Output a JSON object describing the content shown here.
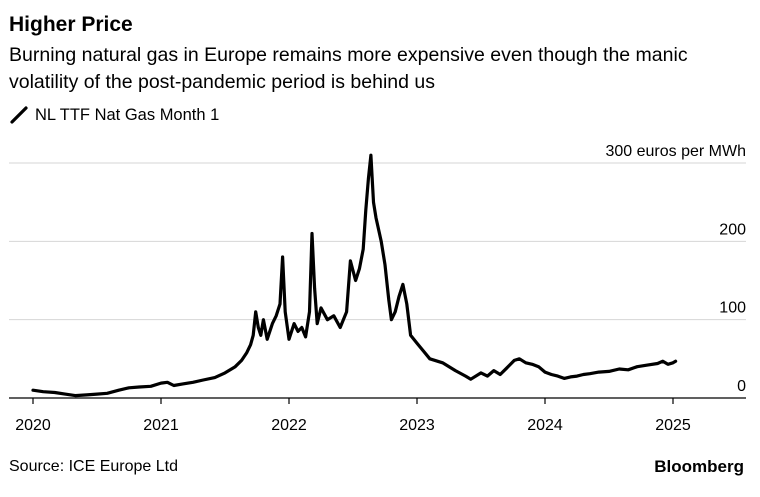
{
  "title": "Higher Price",
  "subtitle": "Burning natural gas in Europe remains more expensive even though the manic volatility of the post-pandemic period is behind us",
  "legend_label": "NL TTF Nat Gas Month 1",
  "source": "Source: ICE Europe Ltd",
  "brand": "Bloomberg",
  "colors": {
    "line": "#000000",
    "grid": "#d6d6d6",
    "axis": "#000000"
  },
  "chart_data": {
    "type": "line",
    "title": "Higher Price",
    "y_unit_label": "300 euros per MWh",
    "ylim": [
      0,
      300
    ],
    "y_ticks": [
      0,
      100,
      200,
      300
    ],
    "y_tick_labels": [
      "0",
      "100",
      "200",
      "300 euros per MWh"
    ],
    "x_ticks": [
      2020,
      2021,
      2022,
      2023,
      2024,
      2025
    ],
    "x_tick_labels": [
      "2020",
      "2021",
      "2022",
      "2023",
      "2024",
      "2025"
    ],
    "xlim": [
      2020,
      2025.55
    ],
    "grid": true,
    "legend_position": "top-left",
    "series": [
      {
        "name": "NL TTF Nat Gas Month 1",
        "points": [
          [
            2020.0,
            10
          ],
          [
            2020.08,
            8
          ],
          [
            2020.17,
            7
          ],
          [
            2020.25,
            5
          ],
          [
            2020.33,
            3
          ],
          [
            2020.42,
            4
          ],
          [
            2020.5,
            5
          ],
          [
            2020.58,
            6
          ],
          [
            2020.67,
            10
          ],
          [
            2020.75,
            13
          ],
          [
            2020.83,
            14
          ],
          [
            2020.92,
            15
          ],
          [
            2021.0,
            19
          ],
          [
            2021.05,
            20
          ],
          [
            2021.1,
            16
          ],
          [
            2021.17,
            18
          ],
          [
            2021.25,
            20
          ],
          [
            2021.33,
            23
          ],
          [
            2021.42,
            26
          ],
          [
            2021.5,
            32
          ],
          [
            2021.58,
            40
          ],
          [
            2021.63,
            48
          ],
          [
            2021.67,
            58
          ],
          [
            2021.7,
            68
          ],
          [
            2021.72,
            80
          ],
          [
            2021.74,
            110
          ],
          [
            2021.76,
            90
          ],
          [
            2021.78,
            80
          ],
          [
            2021.8,
            100
          ],
          [
            2021.83,
            75
          ],
          [
            2021.87,
            95
          ],
          [
            2021.9,
            105
          ],
          [
            2021.93,
            120
          ],
          [
            2021.95,
            180
          ],
          [
            2021.97,
            110
          ],
          [
            2022.0,
            75
          ],
          [
            2022.04,
            95
          ],
          [
            2022.07,
            85
          ],
          [
            2022.1,
            90
          ],
          [
            2022.13,
            78
          ],
          [
            2022.16,
            110
          ],
          [
            2022.18,
            210
          ],
          [
            2022.2,
            140
          ],
          [
            2022.22,
            95
          ],
          [
            2022.25,
            115
          ],
          [
            2022.3,
            100
          ],
          [
            2022.35,
            105
          ],
          [
            2022.4,
            90
          ],
          [
            2022.45,
            110
          ],
          [
            2022.48,
            175
          ],
          [
            2022.52,
            150
          ],
          [
            2022.55,
            165
          ],
          [
            2022.58,
            190
          ],
          [
            2022.6,
            240
          ],
          [
            2022.62,
            280
          ],
          [
            2022.64,
            310
          ],
          [
            2022.66,
            250
          ],
          [
            2022.68,
            230
          ],
          [
            2022.72,
            200
          ],
          [
            2022.75,
            170
          ],
          [
            2022.78,
            125
          ],
          [
            2022.8,
            100
          ],
          [
            2022.83,
            110
          ],
          [
            2022.86,
            130
          ],
          [
            2022.89,
            145
          ],
          [
            2022.92,
            120
          ],
          [
            2022.95,
            80
          ],
          [
            2023.0,
            70
          ],
          [
            2023.05,
            60
          ],
          [
            2023.1,
            50
          ],
          [
            2023.2,
            45
          ],
          [
            2023.3,
            35
          ],
          [
            2023.38,
            28
          ],
          [
            2023.42,
            24
          ],
          [
            2023.5,
            32
          ],
          [
            2023.55,
            28
          ],
          [
            2023.6,
            35
          ],
          [
            2023.65,
            30
          ],
          [
            2023.7,
            38
          ],
          [
            2023.76,
            48
          ],
          [
            2023.8,
            50
          ],
          [
            2023.85,
            45
          ],
          [
            2023.9,
            43
          ],
          [
            2023.95,
            40
          ],
          [
            2024.0,
            33
          ],
          [
            2024.05,
            30
          ],
          [
            2024.1,
            28
          ],
          [
            2024.15,
            25
          ],
          [
            2024.2,
            27
          ],
          [
            2024.25,
            28
          ],
          [
            2024.3,
            30
          ],
          [
            2024.35,
            31
          ],
          [
            2024.42,
            33
          ],
          [
            2024.5,
            34
          ],
          [
            2024.58,
            37
          ],
          [
            2024.65,
            36
          ],
          [
            2024.72,
            40
          ],
          [
            2024.8,
            42
          ],
          [
            2024.88,
            44
          ],
          [
            2024.92,
            47
          ],
          [
            2024.96,
            43
          ],
          [
            2025.0,
            45
          ],
          [
            2025.02,
            47
          ]
        ]
      }
    ]
  }
}
